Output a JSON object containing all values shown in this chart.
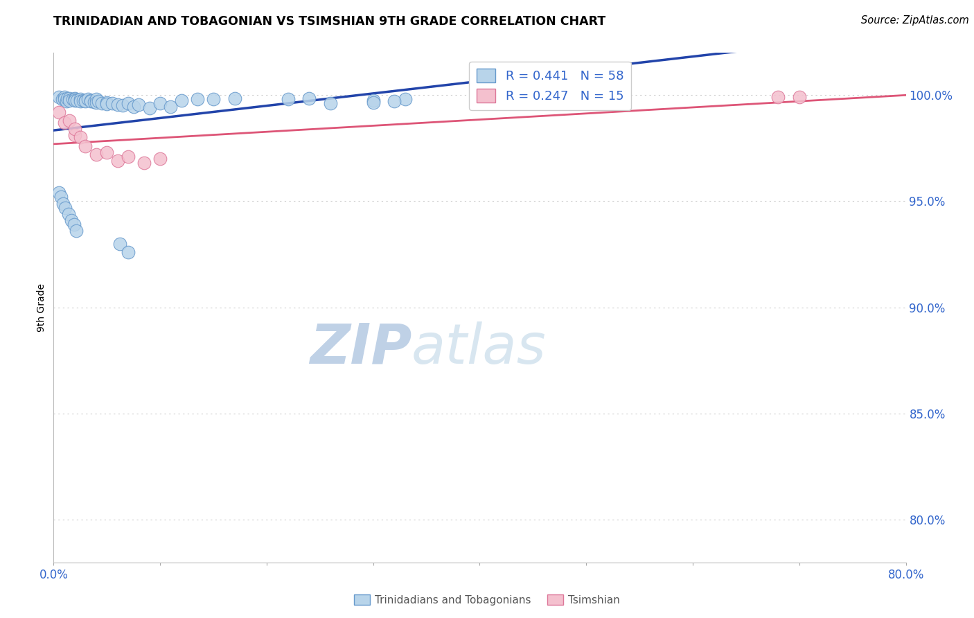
{
  "title": "TRINIDADIAN AND TOBAGONIAN VS TSIMSHIAN 9TH GRADE CORRELATION CHART",
  "source_text": "Source: ZipAtlas.com",
  "ylabel_label": "9th Grade",
  "xlim": [
    0.0,
    0.8
  ],
  "ylim": [
    0.78,
    1.02
  ],
  "ytick_positions": [
    0.8,
    0.85,
    0.9,
    0.95,
    1.0
  ],
  "ytick_labels": [
    "80.0%",
    "85.0%",
    "90.0%",
    "95.0%",
    "100.0%"
  ],
  "blue_color": "#b8d4ea",
  "blue_edge_color": "#6699cc",
  "blue_line_color": "#2244aa",
  "pink_color": "#f4c0ce",
  "pink_edge_color": "#dd7799",
  "pink_line_color": "#dd5577",
  "watermark_color": "#ccdded",
  "legend_text_color": "#3366cc",
  "grid_color": "#cccccc",
  "blue_scatter_x": [
    0.005,
    0.008,
    0.01,
    0.01,
    0.012,
    0.013,
    0.015,
    0.015,
    0.018,
    0.02,
    0.02,
    0.02,
    0.022,
    0.025,
    0.025,
    0.028,
    0.03,
    0.03,
    0.032,
    0.035,
    0.035,
    0.038,
    0.04,
    0.04,
    0.042,
    0.045,
    0.05,
    0.05,
    0.055,
    0.06,
    0.065,
    0.07,
    0.075,
    0.08,
    0.09,
    0.1,
    0.11,
    0.12,
    0.135,
    0.15,
    0.17,
    0.22,
    0.24,
    0.26,
    0.3,
    0.33,
    0.3,
    0.32,
    0.005,
    0.007,
    0.009,
    0.011,
    0.014,
    0.017,
    0.019,
    0.021,
    0.062,
    0.07
  ],
  "blue_scatter_y": [
    0.999,
    0.998,
    0.999,
    0.998,
    0.997,
    0.9985,
    0.9985,
    0.9975,
    0.998,
    0.9985,
    0.998,
    0.9975,
    0.9975,
    0.998,
    0.997,
    0.9975,
    0.9975,
    0.997,
    0.998,
    0.9975,
    0.997,
    0.9968,
    0.998,
    0.9965,
    0.997,
    0.996,
    0.9965,
    0.9958,
    0.996,
    0.9955,
    0.995,
    0.996,
    0.9945,
    0.9955,
    0.994,
    0.996,
    0.9945,
    0.9975,
    0.998,
    0.998,
    0.9985,
    0.998,
    0.9985,
    0.996,
    0.9975,
    0.998,
    0.9965,
    0.997,
    0.954,
    0.952,
    0.949,
    0.947,
    0.944,
    0.941,
    0.939,
    0.936,
    0.93,
    0.926
  ],
  "pink_scatter_x": [
    0.005,
    0.01,
    0.015,
    0.02,
    0.02,
    0.025,
    0.03,
    0.04,
    0.05,
    0.06,
    0.07,
    0.085,
    0.1,
    0.68,
    0.7
  ],
  "pink_scatter_y": [
    0.992,
    0.987,
    0.988,
    0.981,
    0.984,
    0.98,
    0.976,
    0.972,
    0.973,
    0.969,
    0.971,
    0.968,
    0.97,
    0.999,
    0.999
  ]
}
